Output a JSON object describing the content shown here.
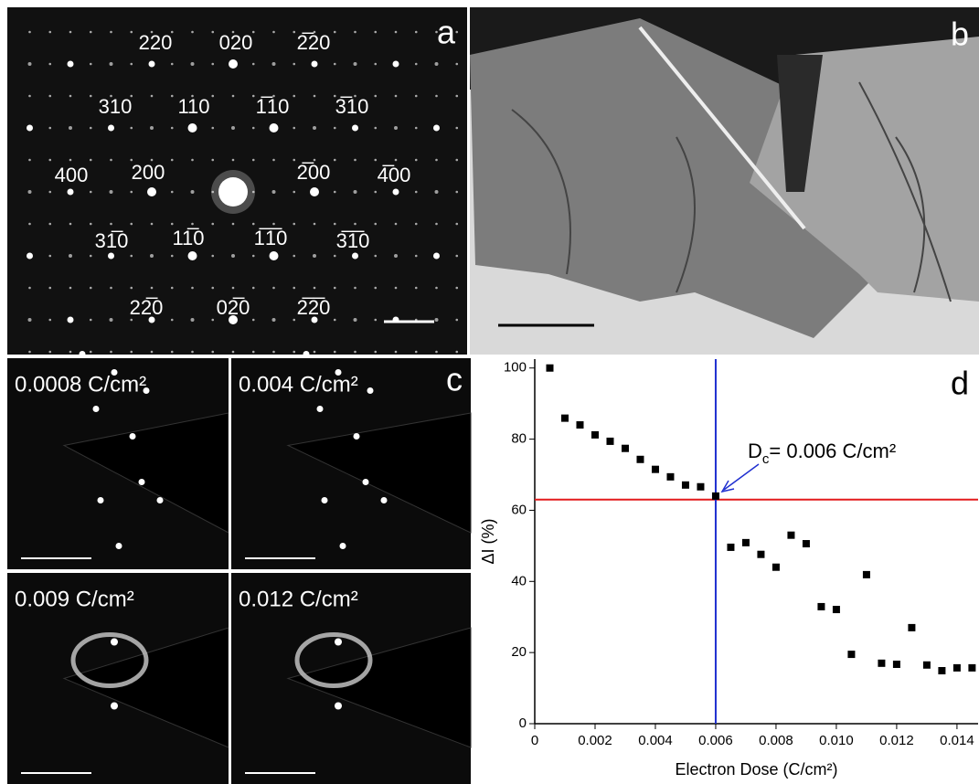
{
  "figure": {
    "panel_a": {
      "label": "a",
      "spots": [
        "220",
        "020",
        "2̅20",
        "310",
        "110",
        "1̅10",
        "3̅10",
        "400",
        "200",
        "2̅00",
        "4̅00",
        "31̅0",
        "11̅0",
        "1̅1̅0",
        "3̅1̅0",
        "22̅0",
        "02̅0",
        "2̅2̅0"
      ]
    },
    "panel_b": {
      "label": "b"
    },
    "panel_c": {
      "label": "c",
      "frames": [
        "0.0008 C/cm²",
        "0.004 C/cm²",
        "0.009 C/cm²",
        "0.012 C/cm²"
      ]
    }
  },
  "chart_data": {
    "type": "scatter",
    "panel_label": "d",
    "xlabel": "Electron Dose (C/cm²)",
    "ylabel": "ΔI (%)",
    "annotation_parts": [
      "D",
      "c",
      "= 0.006 C/cm²"
    ],
    "x": [
      0.0005,
      0.001,
      0.0015,
      0.002,
      0.0025,
      0.003,
      0.0035,
      0.004,
      0.0045,
      0.005,
      0.0055,
      0.006,
      0.0065,
      0.007,
      0.0075,
      0.008,
      0.0085,
      0.009,
      0.0095,
      0.01,
      0.0105,
      0.011,
      0.0115,
      0.012,
      0.0125,
      0.013,
      0.0135,
      0.014,
      0.0145
    ],
    "values": [
      100,
      85.9,
      84,
      81.2,
      79.4,
      77.4,
      74.3,
      71.5,
      69.4,
      67.1,
      66.6,
      64,
      49.6,
      50.9,
      47.6,
      44,
      53,
      50.6,
      32.9,
      32.1,
      19.5,
      41.9,
      17,
      16.7,
      27,
      16.5,
      14.9,
      15.7,
      15.7
    ],
    "color": "#000000",
    "hline": 63,
    "hline_color": "#e31a1c",
    "vline": 0.006,
    "vline_color": "#1f2fd0",
    "xlim": [
      0,
      0.0147
    ],
    "ylim": [
      0,
      102.5
    ],
    "xticks": [
      0,
      0.002,
      0.004,
      0.006,
      0.008,
      {
        "value": 0.01,
        "label": "0.010"
      },
      0.012,
      0.014
    ],
    "yticks": [
      0,
      20,
      40,
      60,
      80,
      100
    ]
  }
}
